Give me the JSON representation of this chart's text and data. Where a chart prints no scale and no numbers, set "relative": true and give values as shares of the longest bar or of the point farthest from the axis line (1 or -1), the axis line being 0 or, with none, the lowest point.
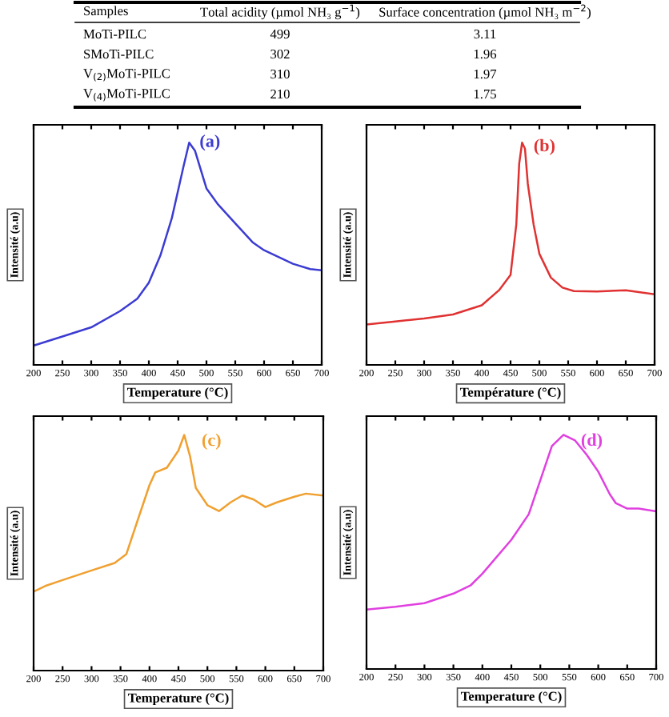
{
  "chart_data": [
    {
      "type": "other",
      "annotations": [
        "Samples",
        "Total acidity (µmol NH₃ g$^{−1}$)",
        "Surface concentration (µmol NH₃ m$^{−2}$)",
        "MoTi-PILC",
        "499",
        "3.11",
        "SMoTi-PILC",
        "302",
        "1.96",
        "V$_{(2)}$MoTi-PILC",
        "310",
        "1.97",
        "V$_{(4)}$MoTi-PILC",
        "210",
        "1.75"
      ]
    },
    {
      "type": "line",
      "relative": true,
      "xlabel": "Temperature (°C)",
      "ylabel": "Intensité (a.u)",
      "xlim": [
        200,
        700
      ],
      "xticks": [
        200,
        250,
        300,
        350,
        400,
        450,
        500,
        550,
        600,
        650,
        700
      ],
      "tick_labels": "x",
      "x": [
        200,
        250,
        300,
        350,
        380,
        400,
        420,
        440,
        460,
        470,
        480,
        500,
        520,
        550,
        580,
        600,
        650,
        680,
        700
      ],
      "series": [
        {
          "color": "#3c3cd2",
          "values": [
            0.087,
            0.128,
            0.169,
            0.242,
            0.298,
            0.37,
            0.492,
            0.661,
            0.891,
            1,
            0.964,
            0.794,
            0.722,
            0.637,
            0.552,
            0.516,
            0.455,
            0.431,
            0.426
          ]
        }
      ],
      "annotations": [
        {
          "text": "(a)",
          "x": 488,
          "y": 1.0
        }
      ]
    },
    {
      "type": "line",
      "relative": true,
      "xlabel": "Température (°C)",
      "ylabel": "Intensité (a.u)",
      "xlim": [
        200,
        700
      ],
      "xticks": [
        200,
        250,
        300,
        350,
        400,
        450,
        500,
        550,
        600,
        650,
        700
      ],
      "tick_labels": "x",
      "x": [
        200,
        250,
        300,
        350,
        400,
        430,
        450,
        460,
        465,
        470,
        475,
        480,
        490,
        500,
        520,
        540,
        560,
        600,
        650,
        700
      ],
      "series": [
        {
          "color": "#e03232",
          "values": [
            0.182,
            0.195,
            0.209,
            0.227,
            0.268,
            0.336,
            0.405,
            0.632,
            0.905,
            1,
            0.973,
            0.814,
            0.632,
            0.5,
            0.393,
            0.348,
            0.332,
            0.33,
            0.336,
            0.318
          ]
        }
      ],
      "annotations": [
        {
          "text": "(b)",
          "x": 490,
          "y": 0.98
        }
      ]
    },
    {
      "type": "line",
      "relative": true,
      "xlabel": "Temperature (°C)",
      "ylabel": "Intensité (a.u)",
      "xlim": [
        200,
        700
      ],
      "xticks": [
        200,
        250,
        300,
        350,
        400,
        450,
        500,
        550,
        600,
        650,
        700
      ],
      "tick_labels": "x",
      "x": [
        200,
        220,
        250,
        300,
        340,
        360,
        380,
        400,
        410,
        430,
        450,
        460,
        470,
        480,
        500,
        520,
        540,
        560,
        580,
        600,
        620,
        650,
        670,
        700
      ],
      "series": [
        {
          "color": "#f0a030",
          "values": [
            0.335,
            0.359,
            0.384,
            0.425,
            0.457,
            0.494,
            0.641,
            0.787,
            0.841,
            0.861,
            0.934,
            1,
            0.91,
            0.775,
            0.702,
            0.677,
            0.714,
            0.743,
            0.726,
            0.694,
            0.714,
            0.738,
            0.751,
            0.743
          ]
        }
      ],
      "annotations": [
        "(c)"
      ]
    },
    {
      "type": "line",
      "relative": true,
      "xlabel": "Temperature (°C)",
      "ylabel": "Intensité (a.u)",
      "xlim": [
        200,
        700
      ],
      "xticks": [
        200,
        250,
        300,
        350,
        400,
        450,
        500,
        550,
        600,
        650,
        700
      ],
      "tick_labels": "x",
      "x": [
        200,
        250,
        300,
        350,
        380,
        400,
        450,
        480,
        500,
        520,
        540,
        560,
        580,
        600,
        620,
        630,
        650,
        670,
        700
      ],
      "series": [
        {
          "color": "#e040e0",
          "values": [
            0.254,
            0.266,
            0.281,
            0.322,
            0.358,
            0.407,
            0.552,
            0.661,
            0.806,
            0.952,
            1,
            0.976,
            0.915,
            0.843,
            0.746,
            0.709,
            0.685,
            0.685,
            0.673
          ]
        }
      ],
      "annotations": [
        "(d)"
      ]
    }
  ]
}
